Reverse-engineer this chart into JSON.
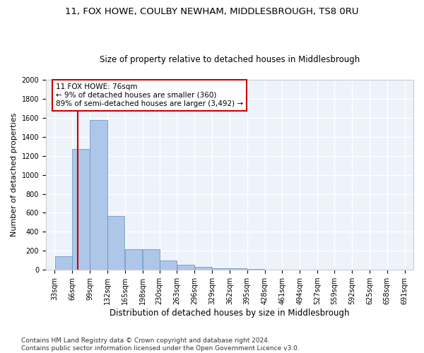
{
  "title1": "11, FOX HOWE, COULBY NEWHAM, MIDDLESBROUGH, TS8 0RU",
  "title2": "Size of property relative to detached houses in Middlesbrough",
  "xlabel": "Distribution of detached houses by size in Middlesbrough",
  "ylabel": "Number of detached properties",
  "footer": "Contains HM Land Registry data © Crown copyright and database right 2024.\nContains public sector information licensed under the Open Government Licence v3.0.",
  "bins": [
    33,
    66,
    99,
    132,
    165,
    198,
    230,
    263,
    296,
    329,
    362,
    395,
    428,
    461,
    494,
    527,
    559,
    592,
    625,
    658,
    691
  ],
  "values": [
    140,
    1270,
    1575,
    565,
    220,
    220,
    95,
    50,
    30,
    20,
    15,
    10,
    5,
    2,
    1,
    1,
    0,
    0,
    0,
    0
  ],
  "bar_color": "#aec6e8",
  "bar_edge_color": "#5a8fc0",
  "bar_edge_width": 0.5,
  "vline_x": 76,
  "vline_color": "#cc0000",
  "annotation_text": "11 FOX HOWE: 76sqm\n← 9% of detached houses are smaller (360)\n89% of semi-detached houses are larger (3,492) →",
  "annotation_box_color": "white",
  "annotation_border_color": "#cc0000",
  "ylim": [
    0,
    2000
  ],
  "yticks": [
    0,
    200,
    400,
    600,
    800,
    1000,
    1200,
    1400,
    1600,
    1800,
    2000
  ],
  "background_color": "#eef2fa",
  "grid_color": "white",
  "title1_fontsize": 9.5,
  "title2_fontsize": 8.5,
  "xlabel_fontsize": 8.5,
  "ylabel_fontsize": 8,
  "tick_fontsize": 7,
  "annotation_fontsize": 7.5,
  "footer_fontsize": 6.5
}
